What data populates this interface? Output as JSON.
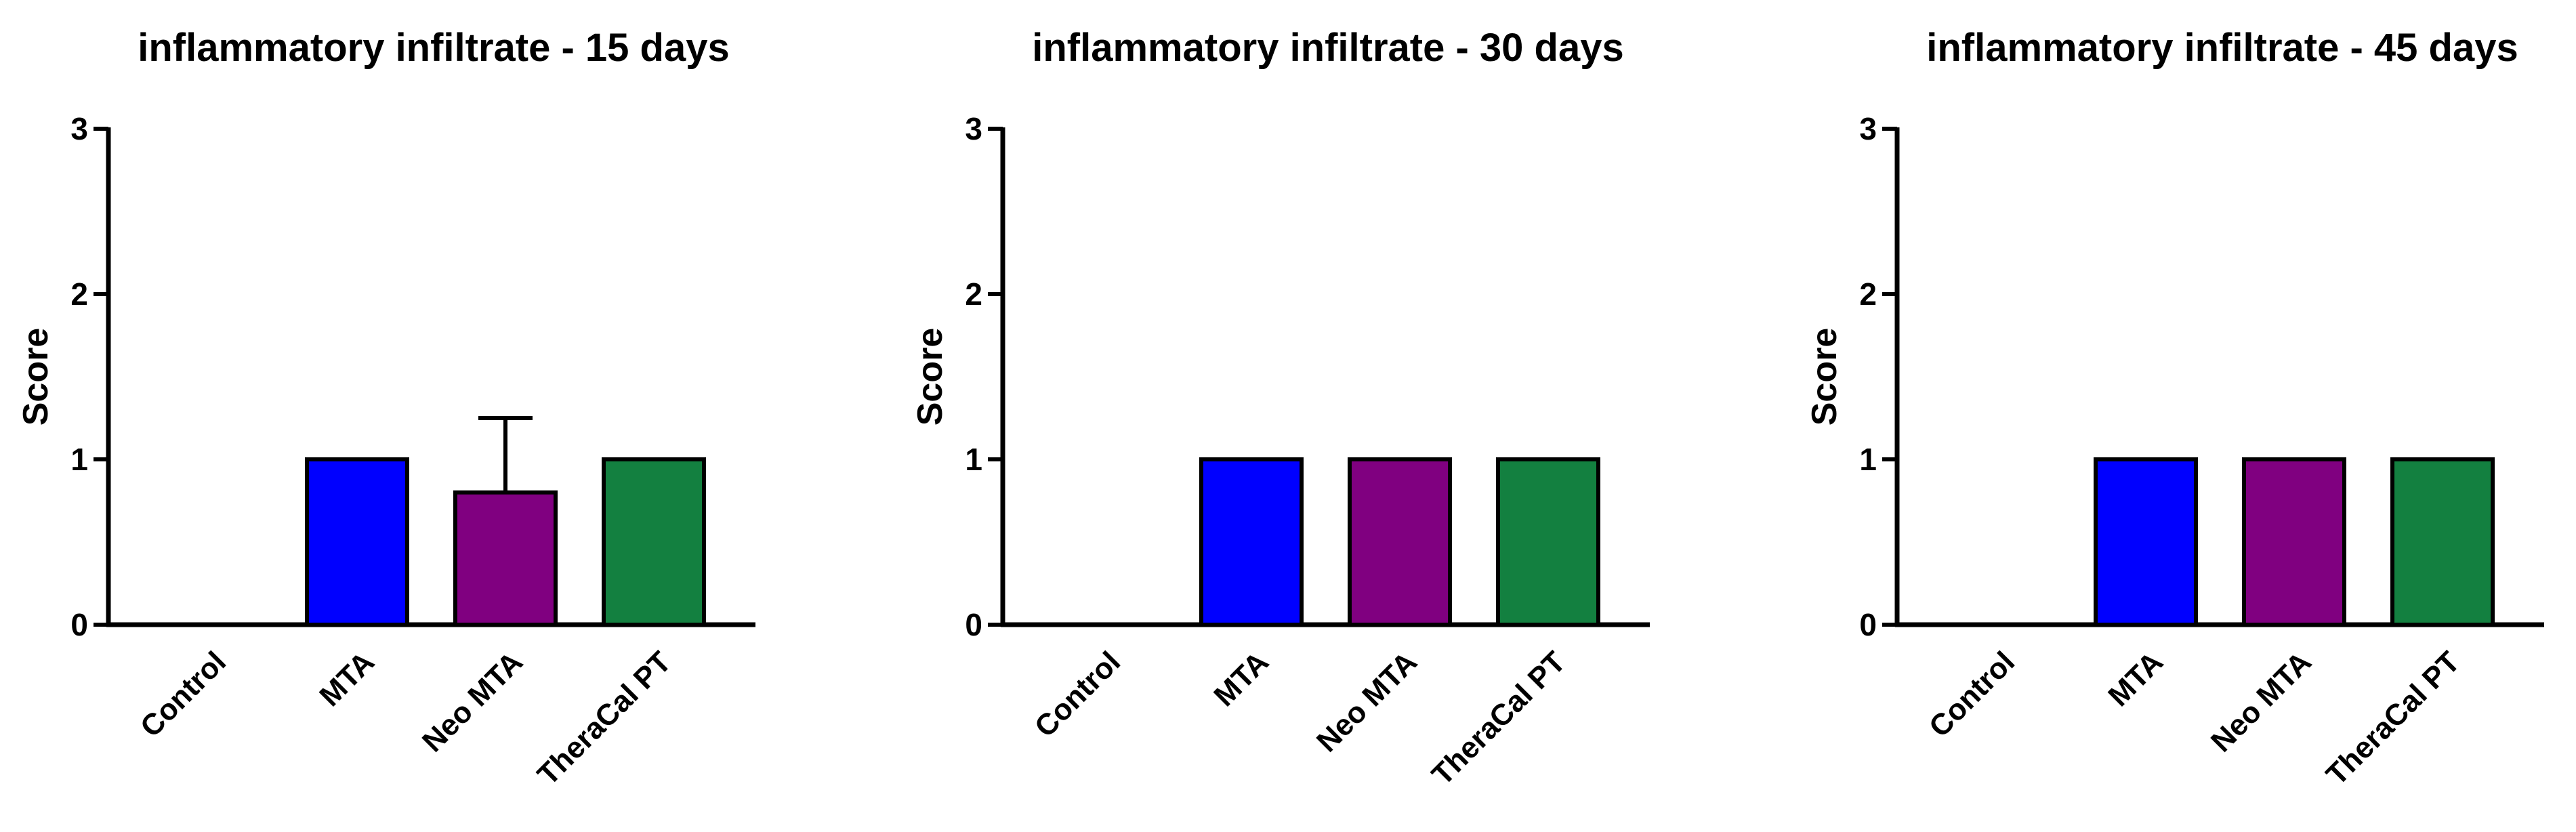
{
  "chart_data": [
    {
      "type": "bar",
      "title": "inflammatory infiltrate - 15 days",
      "ylabel": "Score",
      "xlabel": "",
      "ylim": [
        0,
        3
      ],
      "yticks": [
        0,
        1,
        2,
        3
      ],
      "categories": [
        "Control",
        "MTA",
        "Neo MTA",
        "TheraCal PT"
      ],
      "values": [
        0,
        1,
        0.8,
        1
      ],
      "error_plus": [
        0,
        0,
        0.45,
        0
      ],
      "colors": [
        "#ffffff",
        "#0000ff",
        "#800080",
        "#138040"
      ],
      "grid": false
    },
    {
      "type": "bar",
      "title": "inflammatory infiltrate - 30 days",
      "ylabel": "Score",
      "xlabel": "",
      "ylim": [
        0,
        3
      ],
      "yticks": [
        0,
        1,
        2,
        3
      ],
      "categories": [
        "Control",
        "MTA",
        "Neo MTA",
        "TheraCal PT"
      ],
      "values": [
        0,
        1,
        1,
        1
      ],
      "error_plus": [
        0,
        0,
        0,
        0
      ],
      "colors": [
        "#ffffff",
        "#0000ff",
        "#800080",
        "#138040"
      ],
      "grid": false
    },
    {
      "type": "bar",
      "title": "inflammatory infiltrate - 45 days",
      "ylabel": "Score",
      "xlabel": "",
      "ylim": [
        0,
        3
      ],
      "yticks": [
        0,
        1,
        2,
        3
      ],
      "categories": [
        "Control",
        "MTA",
        "Neo MTA",
        "TheraCal PT"
      ],
      "values": [
        0,
        1,
        1,
        1
      ],
      "error_plus": [
        0,
        0,
        0,
        0
      ],
      "colors": [
        "#ffffff",
        "#0000ff",
        "#800080",
        "#138040"
      ],
      "grid": false
    }
  ]
}
